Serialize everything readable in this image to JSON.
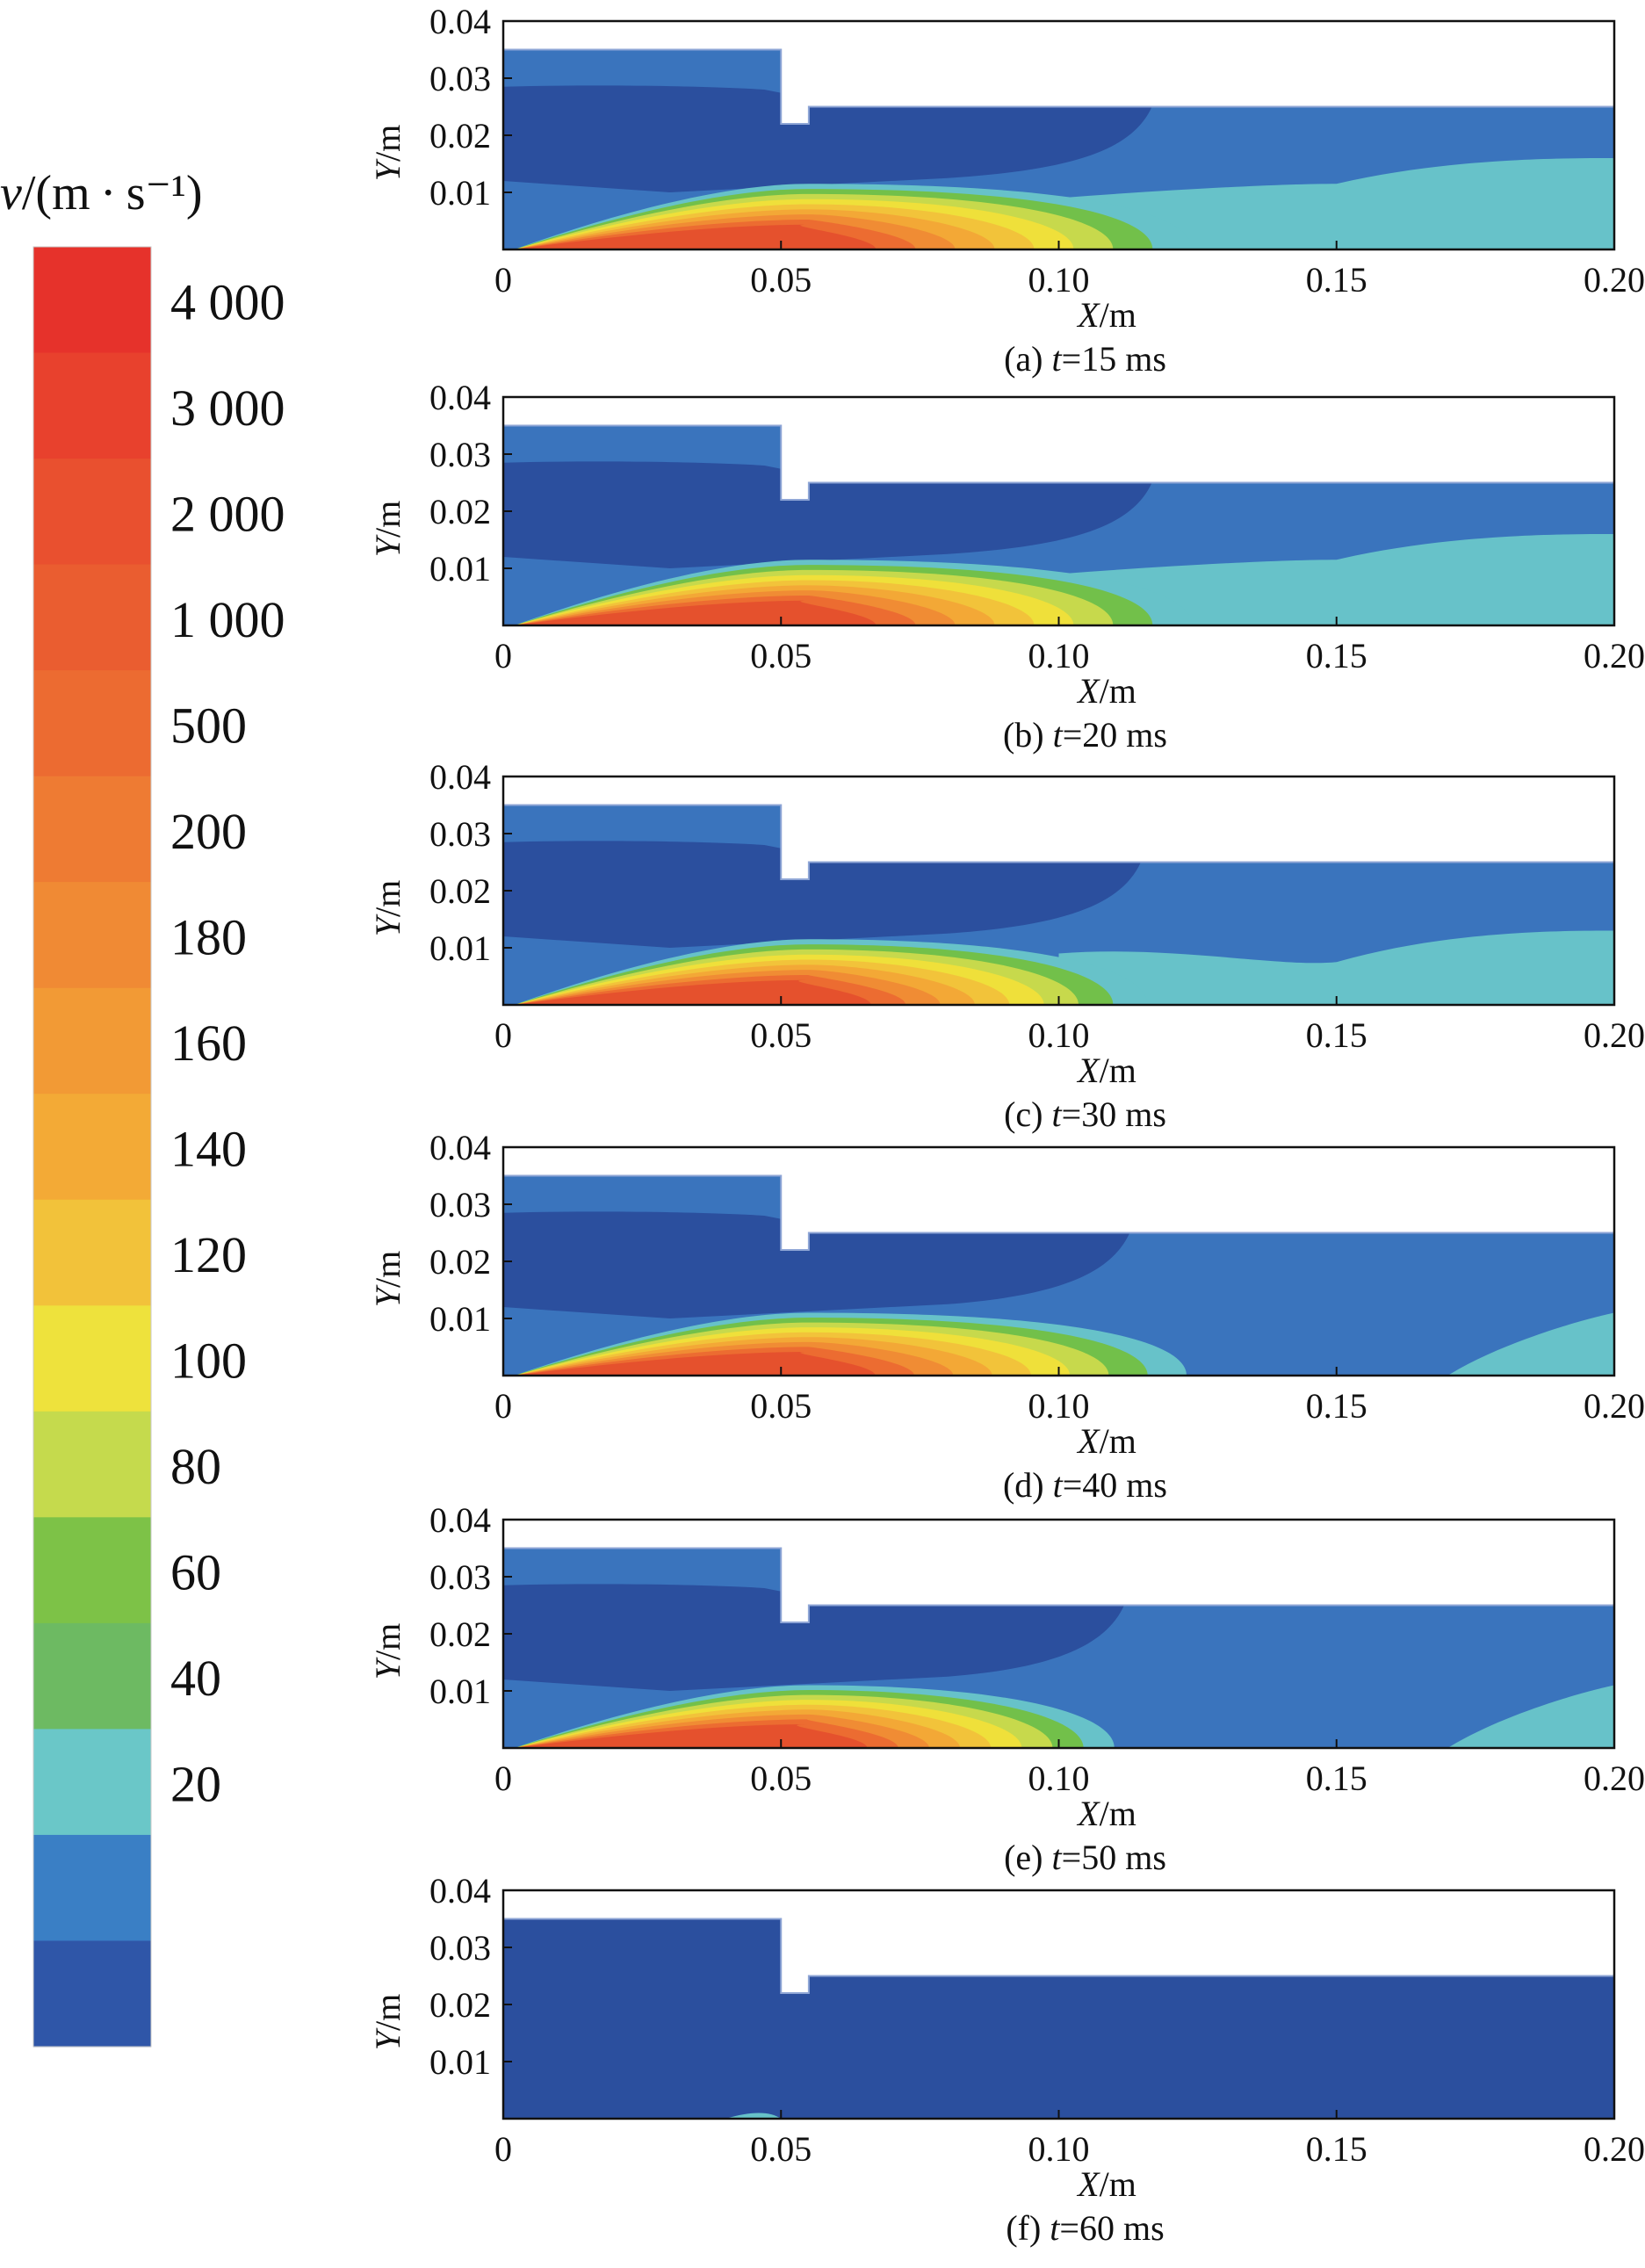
{
  "chart_data": {
    "type": "contour",
    "colorbar": {
      "title": "v/(m · s⁻¹)",
      "tick_labels": [
        "4 000",
        "3 000",
        "2 000",
        "1 000",
        "500",
        "200",
        "180",
        "160",
        "140",
        "120",
        "100",
        "80",
        "60",
        "40",
        "20"
      ],
      "band_colors": [
        "#e6322b",
        "#e8412d",
        "#e9502f",
        "#ea5d30",
        "#ec6b31",
        "#ee7b33",
        "#f08a34",
        "#f29a35",
        "#f3aa36",
        "#f2c23a",
        "#eee23c",
        "#c5da4d",
        "#7dc247",
        "#6dba62",
        "#6ac7c8",
        "#3a7fc5",
        "#2f56a8"
      ]
    },
    "panels": [
      {
        "label": "(a)",
        "t_prefix": "t",
        "t_value": "=15 ms",
        "front_x": 0.124,
        "mid_x": 0.117,
        "upper_slope": 0.016,
        "reverse": false
      },
      {
        "label": "(b)",
        "t_prefix": "t",
        "t_value": "=20 ms",
        "front_x": 0.124,
        "mid_x": 0.117,
        "upper_slope": 0.016,
        "reverse": false
      },
      {
        "label": "(c)",
        "t_prefix": "t",
        "t_value": "=30 ms",
        "front_x": 0.116,
        "mid_x": 0.115,
        "upper_slope": 0.013,
        "reverse": false
      },
      {
        "label": "(d)",
        "t_prefix": "t",
        "t_value": "=40 ms",
        "front_x": 0.123,
        "mid_x": 0.113,
        "upper_slope": 0.0,
        "reverse": true
      },
      {
        "label": "(e)",
        "t_prefix": "t",
        "t_value": "=50 ms",
        "front_x": 0.11,
        "mid_x": 0.112,
        "upper_slope": 0.0,
        "reverse": true
      },
      {
        "label": "(f)",
        "t_prefix": "t",
        "t_value": "=60 ms",
        "front_x": 0.0,
        "mid_x": 0.0,
        "upper_slope": 0.0,
        "reverse": false
      }
    ],
    "x_axis": {
      "label": "X",
      "unit": "/m",
      "ticks": [
        "0",
        "0.05",
        "0.10",
        "0.15",
        "0.20"
      ],
      "range": [
        0,
        0.2
      ]
    },
    "y_axis": {
      "label": "Y",
      "unit": "/m",
      "ticks": [
        "0.01",
        "0.02",
        "0.03",
        "0.04"
      ],
      "range": [
        0,
        0.04
      ]
    },
    "geometry_data_units": {
      "chamber_top": 0.035,
      "step_x": [
        0.05,
        0.055
      ],
      "notch_bottom": 0.022,
      "tube_top": 0.025
    }
  }
}
